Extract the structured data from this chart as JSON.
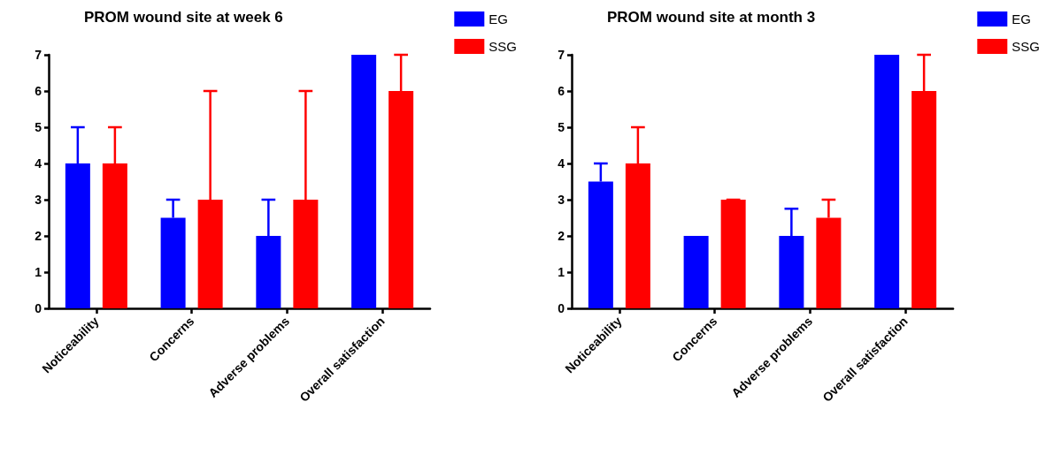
{
  "chart_data": [
    {
      "type": "bar",
      "title": "PROM wound site at week 6",
      "categories": [
        "Noticeability",
        "Concerns",
        "Adverse problems",
        "Overall satisfaction"
      ],
      "ylim": [
        0,
        7
      ],
      "yticks": [
        0,
        1,
        2,
        3,
        4,
        5,
        6,
        7
      ],
      "grid": false,
      "legend": "top right",
      "series": [
        {
          "name": "EG",
          "color": "#0000ff",
          "values": [
            4,
            2.5,
            2,
            7
          ],
          "errors": [
            [
              4,
              5
            ],
            [
              2.5,
              3
            ],
            [
              2,
              3
            ],
            null
          ]
        },
        {
          "name": "SSG",
          "color": "#ff0000",
          "values": [
            4,
            3,
            3,
            6
          ],
          "errors": [
            [
              4,
              5
            ],
            [
              3,
              6
            ],
            [
              3,
              6
            ],
            [
              6,
              7
            ]
          ]
        }
      ]
    },
    {
      "type": "bar",
      "title": "PROM wound site at month 3",
      "categories": [
        "Noticeability",
        "Concerns",
        "Adverse problems",
        "Overall satisfaction"
      ],
      "ylim": [
        0,
        7
      ],
      "yticks": [
        0,
        1,
        2,
        3,
        4,
        5,
        6,
        7
      ],
      "grid": false,
      "legend": "top right",
      "series": [
        {
          "name": "EG",
          "color": "#0000ff",
          "values": [
            3.5,
            2,
            2,
            7
          ],
          "errors": [
            [
              3.5,
              4
            ],
            null,
            [
              2,
              2.75
            ],
            null
          ]
        },
        {
          "name": "SSG",
          "color": "#ff0000",
          "values": [
            4,
            3,
            2.5,
            6
          ],
          "errors": [
            [
              4,
              5
            ],
            [
              3,
              3
            ],
            [
              2.5,
              3
            ],
            [
              6,
              7
            ]
          ]
        }
      ]
    }
  ]
}
